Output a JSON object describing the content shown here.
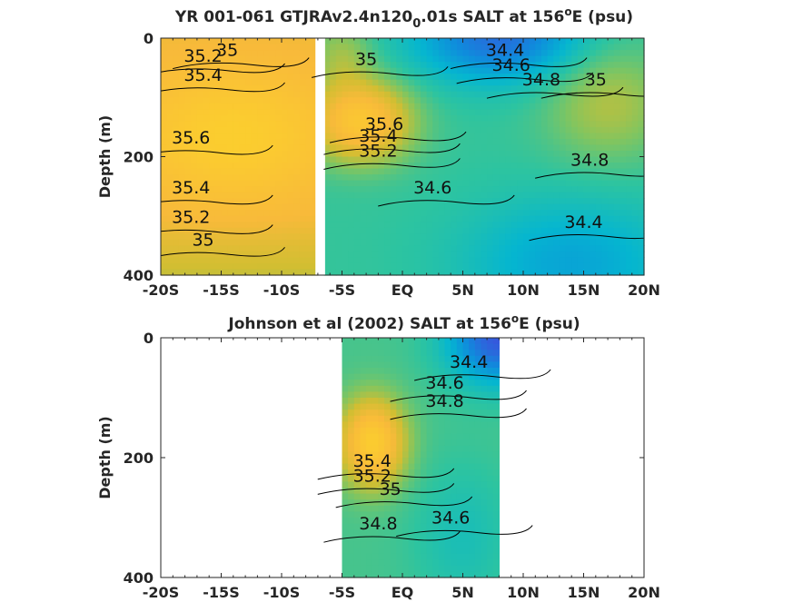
{
  "chart_data": [
    {
      "type": "contour",
      "title": "YR 001-061 GTJRAv2.4n120",
      "title_subscript": "0",
      "title_rest": ".01s SALT at 156",
      "title_superscript": "o",
      "title_end": "E (psu)",
      "ylabel": "Depth (m)",
      "xlim": [
        -20,
        20
      ],
      "ylim": [
        0,
        400
      ],
      "y_reversed": true,
      "xticks": [
        -20,
        -15,
        -10,
        -5,
        0,
        5,
        10,
        15,
        20
      ],
      "xticklabels": [
        "-20S",
        "-15S",
        "-10S",
        "-5S",
        "EQ",
        "5N",
        "10N",
        "15N",
        "20N"
      ],
      "yticks": [
        0,
        200,
        400
      ],
      "yticklabels": [
        "0",
        "200",
        "400"
      ],
      "data_gap": [
        -7.2,
        -6.4
      ],
      "contour_labels": [
        {
          "text": "35.2",
          "x": -16.5,
          "y": 40
        },
        {
          "text": "35",
          "x": -14.5,
          "y": 30
        },
        {
          "text": "35.4",
          "x": -16.5,
          "y": 72
        },
        {
          "text": "35.6",
          "x": -17.5,
          "y": 178
        },
        {
          "text": "35.4",
          "x": -17.5,
          "y": 262
        },
        {
          "text": "35.2",
          "x": -17.5,
          "y": 312
        },
        {
          "text": "35",
          "x": -16.5,
          "y": 350
        },
        {
          "text": "35",
          "x": -3,
          "y": 45
        },
        {
          "text": "35.6",
          "x": -1.5,
          "y": 155
        },
        {
          "text": "35.4",
          "x": -2,
          "y": 175
        },
        {
          "text": "35.2",
          "x": -2,
          "y": 200
        },
        {
          "text": "34.4",
          "x": 8.5,
          "y": 30
        },
        {
          "text": "34.6",
          "x": 9,
          "y": 55
        },
        {
          "text": "34.8",
          "x": 11.5,
          "y": 80
        },
        {
          "text": "35",
          "x": 16,
          "y": 80
        },
        {
          "text": "34.8",
          "x": 15.5,
          "y": 215
        },
        {
          "text": "34.6",
          "x": 2.5,
          "y": 262
        },
        {
          "text": "34.4",
          "x": 15,
          "y": 320
        }
      ]
    },
    {
      "type": "contour",
      "title": "Johnson et al (2002) SALT at 156",
      "title_superscript": "o",
      "title_end": "E (psu)",
      "ylabel": "Depth (m)",
      "xlim": [
        -20,
        20
      ],
      "ylim": [
        0,
        400
      ],
      "y_reversed": true,
      "xticks": [
        -20,
        -15,
        -10,
        -5,
        0,
        5,
        10,
        15,
        20
      ],
      "xticklabels": [
        "-20S",
        "-15S",
        "-10S",
        "-5S",
        "EQ",
        "5N",
        "10N",
        "15N",
        "20N"
      ],
      "yticks": [
        0,
        200,
        400
      ],
      "yticklabels": [
        "0",
        "200",
        "400"
      ],
      "data_xrange": [
        -5.1,
        8.2
      ],
      "contour_labels": [
        {
          "text": "34.4",
          "x": 5.5,
          "y": 50
        },
        {
          "text": "34.6",
          "x": 3.5,
          "y": 85
        },
        {
          "text": "34.8",
          "x": 3.5,
          "y": 115
        },
        {
          "text": "35.4",
          "x": -2.5,
          "y": 215
        },
        {
          "text": "35.2",
          "x": -2.5,
          "y": 240
        },
        {
          "text": "35",
          "x": -1,
          "y": 262
        },
        {
          "text": "34.8",
          "x": -2,
          "y": 320
        },
        {
          "text": "34.6",
          "x": 4,
          "y": 310
        }
      ]
    }
  ]
}
